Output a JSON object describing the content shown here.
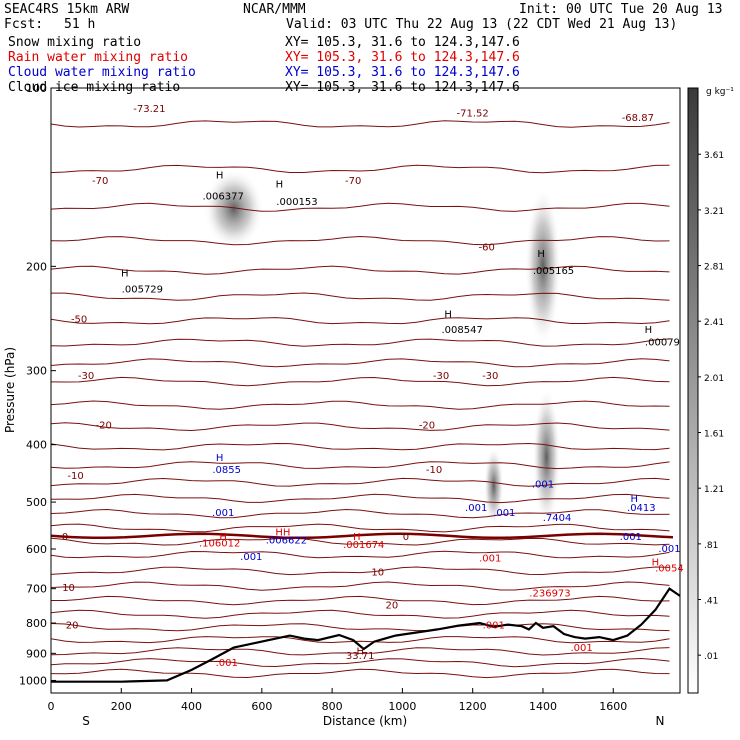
{
  "header": {
    "title": "SEAC4RS 15km ARW",
    "org": "NCAR/MMM",
    "init": "Init: 00 UTC Tue 20 Aug 13",
    "fcst_label": "Fcst:",
    "fcst_value": "51 h",
    "valid": "Valid: 03 UTC Thu 22 Aug 13 (22 CDT Wed 21 Aug 13)",
    "fields": [
      {
        "name": "Snow mixing ratio",
        "xy": "XY= 105.3, 31.6 to 124.3,147.6",
        "color": "#000000"
      },
      {
        "name": "Rain water mixing ratio",
        "xy": "XY= 105.3, 31.6 to 124.3,147.6",
        "color": "#e00000"
      },
      {
        "name": "Cloud water mixing ratio",
        "xy": "XY= 105.3, 31.6 to 124.3,147.6",
        "color": "#0000cc"
      },
      {
        "name": "Cloud ice mixing ratio",
        "xy": "XY= 105.3, 31.6 to 124.3,147.6",
        "color": "#000000"
      }
    ]
  },
  "chart_data": {
    "type": "heatmap",
    "xlabel": "Distance (km)",
    "ylabel": "Pressure (hPa)",
    "xlim": [
      0,
      1790
    ],
    "ylim": [
      1050,
      100
    ],
    "y_scale": "log",
    "x_ticks": [
      0,
      200,
      400,
      600,
      800,
      1000,
      1200,
      1400,
      1600
    ],
    "y_ticks": [
      100,
      200,
      300,
      400,
      500,
      600,
      700,
      800,
      900,
      1000
    ],
    "x_end_labels": {
      "left": "S",
      "right": "N"
    },
    "colorbar": {
      "unit": "g kg⁻¹",
      "levels": [
        ".01",
        ".41",
        ".81",
        "1.21",
        "1.61",
        "2.01",
        "2.41",
        "2.81",
        "3.21",
        "3.61"
      ]
    },
    "temperature_contour_labels": [
      {
        "label": "-70",
        "x": 140,
        "p": 143
      },
      {
        "label": "-70",
        "x": 860,
        "p": 143
      },
      {
        "label": "-60",
        "x": 1240,
        "p": 185
      },
      {
        "label": "-50",
        "x": 80,
        "p": 245
      },
      {
        "label": "-30",
        "x": 100,
        "p": 305
      },
      {
        "label": "-30",
        "x": 1110,
        "p": 305
      },
      {
        "label": "-30",
        "x": 1250,
        "p": 305
      },
      {
        "label": "-20",
        "x": 150,
        "p": 370
      },
      {
        "label": "-20",
        "x": 1070,
        "p": 370
      },
      {
        "label": "-10",
        "x": 70,
        "p": 450
      },
      {
        "label": "-10",
        "x": 1090,
        "p": 440
      },
      {
        "label": "0",
        "x": 40,
        "p": 570
      },
      {
        "label": "0",
        "x": 1010,
        "p": 570
      },
      {
        "label": "10",
        "x": 930,
        "p": 655
      },
      {
        "label": "10",
        "x": 50,
        "p": 695
      },
      {
        "label": "20",
        "x": 970,
        "p": 745
      },
      {
        "label": "20",
        "x": 60,
        "p": 805
      }
    ],
    "extrema_labels": [
      {
        "label": "-73.21",
        "x": 280,
        "p": 108,
        "color": "#7a0000"
      },
      {
        "label": "-71.52",
        "x": 1200,
        "p": 110,
        "color": "#7a0000"
      },
      {
        "label": "-68.87",
        "x": 1670,
        "p": 112,
        "color": "#7a0000"
      },
      {
        "label": "33.71",
        "x": 880,
        "p": 905,
        "color": "#7a0000"
      },
      {
        "label": "H",
        "x": 480,
        "p": 140,
        "color": "#000000"
      },
      {
        "label": ".006377",
        "x": 490,
        "p": 152,
        "color": "#000000"
      },
      {
        "label": "H",
        "x": 650,
        "p": 145,
        "color": "#000000"
      },
      {
        "label": ".000153",
        "x": 700,
        "p": 155,
        "color": "#000000"
      },
      {
        "label": "H",
        "x": 210,
        "p": 205,
        "color": "#000000"
      },
      {
        "label": ".005729",
        "x": 260,
        "p": 218,
        "color": "#000000"
      },
      {
        "label": "H",
        "x": 1395,
        "p": 190,
        "color": "#000000"
      },
      {
        "label": ".005165",
        "x": 1430,
        "p": 203,
        "color": "#000000"
      },
      {
        "label": "H",
        "x": 1130,
        "p": 240,
        "color": "#000000"
      },
      {
        "label": ".008547",
        "x": 1170,
        "p": 255,
        "color": "#000000"
      },
      {
        "label": "H",
        "x": 1700,
        "p": 255,
        "color": "#000000"
      },
      {
        "label": ".00079",
        "x": 1740,
        "p": 268,
        "color": "#000000"
      },
      {
        "label": "H",
        "x": 480,
        "p": 420,
        "color": "#0000cc"
      },
      {
        "label": ".0855",
        "x": 500,
        "p": 440,
        "color": "#0000cc"
      },
      {
        "label": ".001",
        "x": 490,
        "p": 520,
        "color": "#0000cc"
      },
      {
        "label": ".001",
        "x": 570,
        "p": 617,
        "color": "#0000cc"
      },
      {
        "label": ".001",
        "x": 1210,
        "p": 510,
        "color": "#0000cc"
      },
      {
        "label": ".001",
        "x": 1290,
        "p": 520,
        "color": "#0000cc"
      },
      {
        "label": ".001",
        "x": 1650,
        "p": 570,
        "color": "#0000cc"
      },
      {
        "label": ".001",
        "x": 1760,
        "p": 598,
        "color": "#0000cc"
      },
      {
        "label": "H",
        "x": 1660,
        "p": 492,
        "color": "#0000cc"
      },
      {
        "label": ".0413",
        "x": 1680,
        "p": 510,
        "color": "#0000cc"
      },
      {
        "label": ".7404",
        "x": 1440,
        "p": 530,
        "color": "#0000cc"
      },
      {
        "label": ".001",
        "x": 1400,
        "p": 465,
        "color": "#0000cc"
      },
      {
        "label": "H",
        "x": 490,
        "p": 570,
        "color": "#e00000"
      },
      {
        "label": ".106012",
        "x": 480,
        "p": 585,
        "color": "#e00000"
      },
      {
        "label": "HH",
        "x": 660,
        "p": 560,
        "color": "#e00000"
      },
      {
        "label": ".006622",
        "x": 670,
        "p": 578,
        "color": "#0000cc"
      },
      {
        "label": "H",
        "x": 870,
        "p": 570,
        "color": "#e00000"
      },
      {
        "label": ".001674",
        "x": 890,
        "p": 588,
        "color": "#e00000"
      },
      {
        "label": ".001",
        "x": 1250,
        "p": 620,
        "color": "#e00000"
      },
      {
        "label": ".236973",
        "x": 1420,
        "p": 710,
        "color": "#e00000"
      },
      {
        "label": "H",
        "x": 1720,
        "p": 630,
        "color": "#e00000"
      },
      {
        "label": ".0054",
        "x": 1760,
        "p": 645,
        "color": "#e00000"
      },
      {
        "label": ".001",
        "x": 1260,
        "p": 805,
        "color": "#e00000"
      },
      {
        "label": ".001",
        "x": 1510,
        "p": 878,
        "color": "#e00000"
      },
      {
        "label": ".001",
        "x": 500,
        "p": 930,
        "color": "#e00000"
      },
      {
        "label": "H",
        "x": 880,
        "p": 890,
        "color": "#7a0000"
      }
    ],
    "terrain": {
      "description": "surface pressure along cross section",
      "x": [
        0,
        200,
        330,
        400,
        460,
        520,
        560,
        600,
        640,
        680,
        700,
        720,
        760,
        820,
        860,
        890,
        920,
        980,
        1040,
        1100,
        1160,
        1220,
        1260,
        1300,
        1340,
        1360,
        1380,
        1400,
        1430,
        1460,
        1490,
        1520,
        1560,
        1600,
        1640,
        1680,
        1720,
        1760,
        1790
      ],
      "p": [
        1005,
        1005,
        1000,
        960,
        920,
        880,
        870,
        860,
        850,
        840,
        845,
        850,
        855,
        838,
        855,
        885,
        860,
        840,
        830,
        820,
        808,
        800,
        812,
        805,
        810,
        820,
        800,
        815,
        810,
        835,
        845,
        850,
        845,
        855,
        840,
        805,
        760,
        700,
        720
      ]
    }
  }
}
